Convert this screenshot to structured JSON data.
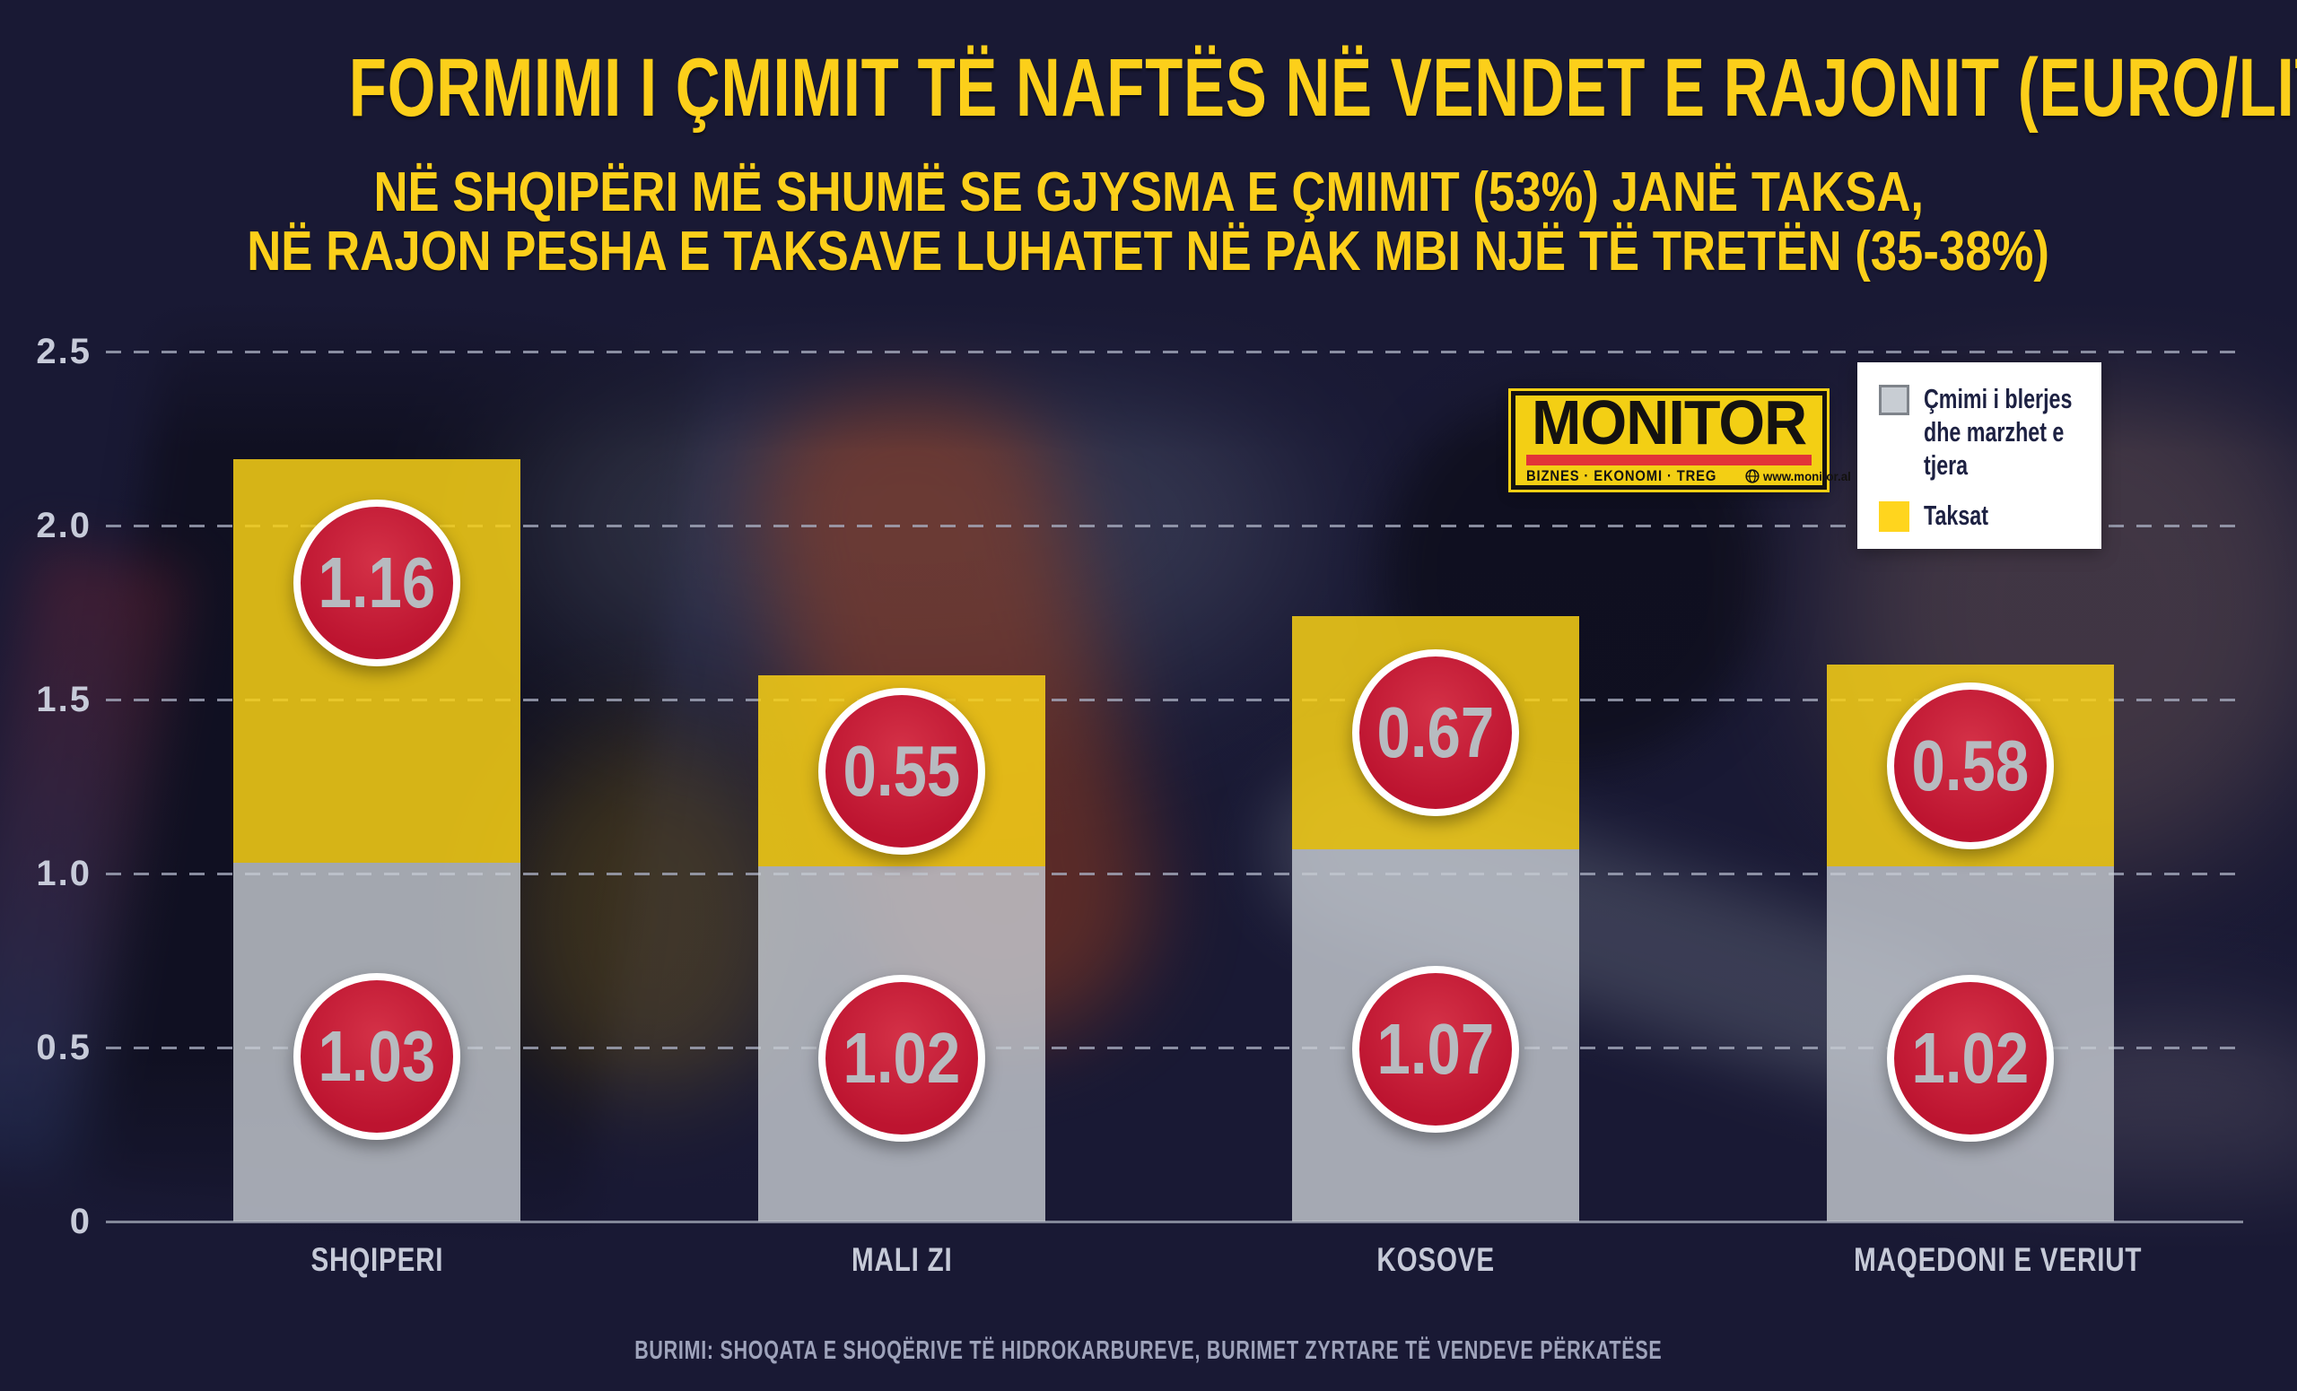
{
  "colors": {
    "background": "#191934",
    "title_yellow": "#FCCF1A",
    "bar_tax_yellow": "#F9D115",
    "bar_price_gray": "#C8CDD3",
    "circle_red": "#C21B32",
    "circle_text": "#B7BBC0",
    "grid": "#A6ABBE",
    "axis_text": "#C7CBD9",
    "label_text": "#C6CAD8",
    "legend_text": "#1D2142",
    "logo_yellow": "#F3CF14",
    "logo_red": "#E23438",
    "logo_black": "#141210",
    "source_text": "#9EA3BB"
  },
  "header": {
    "title": "FORMIMI I ÇMIMIT TË NAFTËS NË VENDET E RAJONIT (EURO/LITËR)",
    "subtitle_line1": "NË SHQIPËRI MË SHUMË SE GJYSMA E ÇMIMIT (53%) JANË TAKSA,",
    "subtitle_line2": "NË RAJON PESHA E TAKSAVE LUHATET NË PAK MBI NJË TË TRETËN (35-38%)"
  },
  "logo": {
    "name": "MONITOR",
    "tagline": "BIZNES · EKONOMI · TREG",
    "website": "www.monitor.al"
  },
  "legend": {
    "items": [
      {
        "label": "Çmimi i blerjes dhe marzhet e tjera",
        "color": "#C8CDD3"
      },
      {
        "label": "Taksat",
        "color": "#FFD51E"
      }
    ]
  },
  "chart_data": {
    "type": "bar",
    "stacked": true,
    "title": "FORMIMI I ÇMIMIT TË NAFTËS NË VENDET E RAJONIT (EURO/LITËR)",
    "categories": [
      "SHQIPERI",
      "MALI ZI",
      "KOSOVE",
      "MAQEDONI E VERIUT"
    ],
    "series": [
      {
        "name": "Çmimi i blerjes dhe marzhet e tjera",
        "color": "#C8CDD3",
        "values": [
          1.03,
          1.02,
          1.07,
          1.02
        ]
      },
      {
        "name": "Taksat",
        "color": "#F9D115",
        "values": [
          1.16,
          0.55,
          0.67,
          0.58
        ]
      }
    ],
    "totals": [
      2.19,
      1.57,
      1.74,
      1.6
    ],
    "unit": "EURO/LITËR",
    "ylim": [
      0,
      2.5
    ],
    "y_ticks": [
      "0",
      "0.5",
      "1.0",
      "1.5",
      "2.0",
      "2.5"
    ],
    "grid": "horizontal-dashed",
    "legend_position": "top-right",
    "data_labels": "inside-red-circles"
  },
  "footer": {
    "source": "BURIMI: SHOQATA E SHOQËRIVE TË HIDROKARBUREVE, BURIMET ZYRTARE TË VENDEVE PËRKATËSE"
  }
}
